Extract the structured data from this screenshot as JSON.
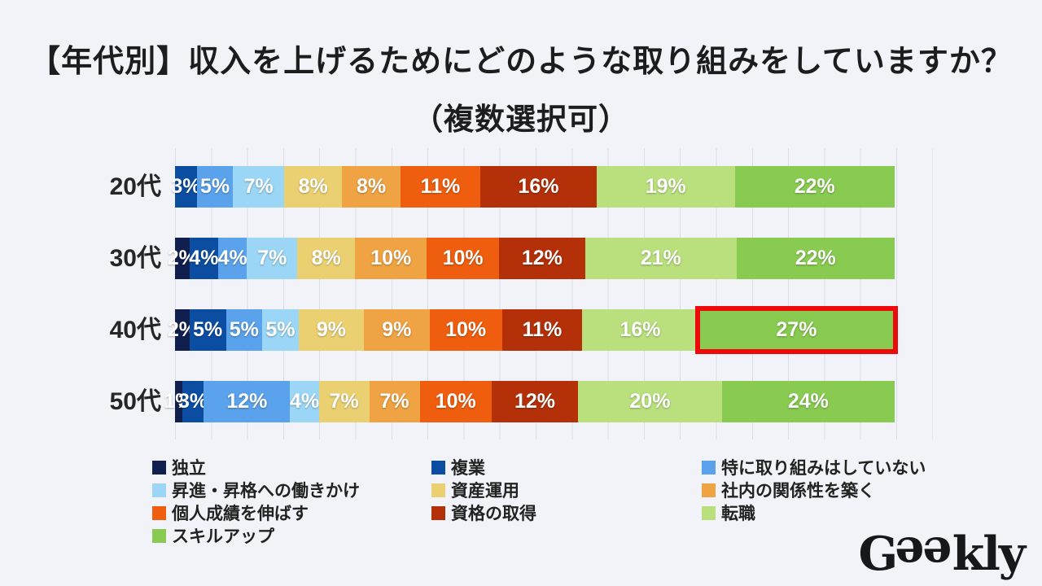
{
  "title": {
    "line1": "【年代別】収入を上げるためにどのような取り組みをしていますか？",
    "line2": "（複数選択可）"
  },
  "chart_data": {
    "type": "bar",
    "variant": "100-percent-stacked-horizontal",
    "unit": "%",
    "title": "【年代別】収入を上げるためにどのような取り組みをしていますか？（複数選択可）",
    "categories": [
      "20代",
      "30代",
      "40代",
      "50代"
    ],
    "series": [
      {
        "name": "独立",
        "color": "#111f4e",
        "values": [
          0,
          2,
          2,
          1
        ]
      },
      {
        "name": "複業",
        "color": "#0b4da1",
        "values": [
          3,
          4,
          5,
          3
        ]
      },
      {
        "name": "特に取り組みはしていない",
        "color": "#5aa2eb",
        "values": [
          5,
          4,
          5,
          12
        ]
      },
      {
        "name": "昇進・昇格への働きかけ",
        "color": "#9bd6f6",
        "values": [
          7,
          7,
          5,
          4
        ]
      },
      {
        "name": "資産運用",
        "color": "#ebd071",
        "values": [
          8,
          8,
          9,
          7
        ]
      },
      {
        "name": "社内の関係性を築く",
        "color": "#efa342",
        "values": [
          8,
          10,
          9,
          7
        ]
      },
      {
        "name": "個人成績を伸ばす",
        "color": "#ee5e0e",
        "values": [
          11,
          10,
          10,
          10
        ]
      },
      {
        "name": "資格の取得",
        "color": "#b33009",
        "values": [
          16,
          12,
          11,
          12
        ]
      },
      {
        "name": "転職",
        "color": "#b9e07d",
        "values": [
          19,
          21,
          16,
          20
        ]
      },
      {
        "name": "スキルアップ",
        "color": "#88cb50",
        "values": [
          22,
          22,
          27,
          24
        ]
      }
    ],
    "highlight": {
      "category": "40代",
      "series": "スキルアップ",
      "value": 27,
      "box_color": "#ee0a0a"
    },
    "xlim": [
      0,
      105
    ],
    "gridlines": "vertical, every 5%",
    "legend_position": "bottom, 3 columns",
    "data_labels": "inside segments, white bold, percent"
  },
  "logo": {
    "g": "G",
    "e1": "e",
    "e2": "e",
    "rest": "kly"
  }
}
